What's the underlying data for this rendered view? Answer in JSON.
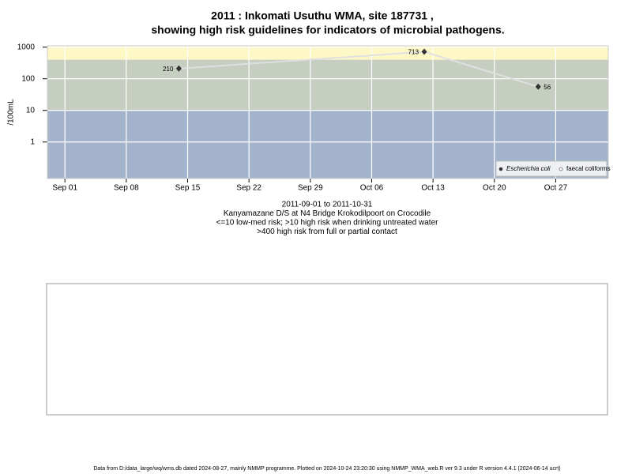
{
  "chart_data": {
    "type": "line",
    "title": "2011 : Inkomati Usuthu WMA, site 187731 ,",
    "subtitle": "showing high risk guidelines for indicators of microbial pathogens.",
    "y_label": "/100mL",
    "notes": [
      "2011-09-01 to 2011-10-31",
      "Kanyamazane D/S at N4 Bridge Krokodilpoort on Crocodile",
      "<=10 low-med risk; >10 high risk when drinking untreated water",
      ">400 high risk from full or partial contact"
    ],
    "footer": "Data from D:/data_large/wq/wms.db dated 2024-08-27, mainly NMMP programme. Plotted on 2024-10-24 23:20:30 using NMMP_WMA_web.R ver 9.3 under R version 4.4.1 (2024-06-14 ucrt)",
    "x": [
      "2011-09-14",
      "2011-10-12",
      "2011-10-25"
    ],
    "series": [
      {
        "name": "Escherichia coli",
        "color": "#333333",
        "line_color": "#e0e0e0",
        "values": [
          210,
          713,
          56
        ],
        "value_labels": [
          "210",
          "713",
          "56"
        ]
      },
      {
        "name": "faecal coliforms",
        "color": "#ffffff",
        "values": [
          null,
          null,
          null
        ]
      }
    ],
    "xlim": [
      "2011-08-30",
      "2011-11-02"
    ],
    "xticks": [
      {
        "value": "2011-09-01",
        "label": "Sep 01"
      },
      {
        "value": "2011-09-08",
        "label": "Sep 08"
      },
      {
        "value": "2011-09-15",
        "label": "Sep 15"
      },
      {
        "value": "2011-09-22",
        "label": "Sep 22"
      },
      {
        "value": "2011-09-29",
        "label": "Sep 29"
      },
      {
        "value": "2011-10-06",
        "label": "Oct 06"
      },
      {
        "value": "2011-10-13",
        "label": "Oct 13"
      },
      {
        "value": "2011-10-20",
        "label": "Oct 20"
      },
      {
        "value": "2011-10-27",
        "label": "Oct 27"
      }
    ],
    "ylim": [
      0.07,
      1100
    ],
    "yticks": [
      1,
      10,
      100,
      1000
    ],
    "log_y": true,
    "grid": true,
    "legend": "bottom-right",
    "bands": [
      {
        "from": 0.07,
        "to": 10,
        "color": "#a3b3cc"
      },
      {
        "from": 10,
        "to": 400,
        "color": "#c6cdc1"
      },
      {
        "from": 400,
        "to": 1100,
        "color": "#fdf8c6"
      }
    ]
  }
}
